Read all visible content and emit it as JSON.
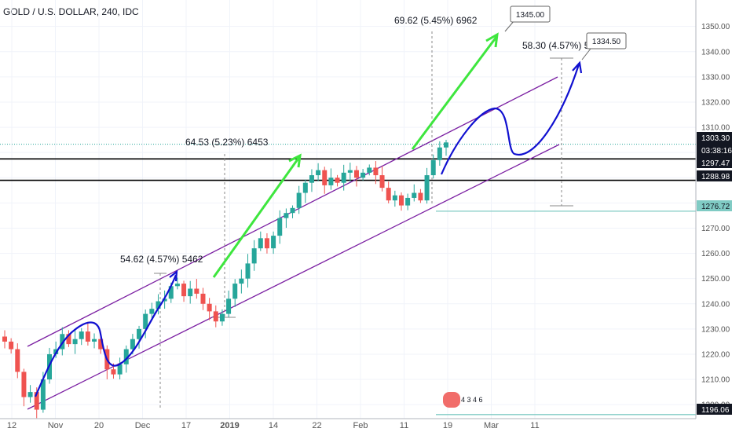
{
  "header": {
    "title": "GOLD / U.S. DOLLAR, 240, IDC"
  },
  "colors": {
    "up": "#26a69a",
    "down": "#ef5350",
    "channel": "#7b1fa2",
    "level": "#000000",
    "teal_line": "#80cbc4",
    "green_arrow": "#3ee63e",
    "blue_path": "#1010d0",
    "price_badge": "#131722",
    "grid": "#f0f3fa"
  },
  "chart_data": {
    "type": "candlestick",
    "symbol": "GOLD / U.S. DOLLAR",
    "timeframe": "240",
    "source": "IDC",
    "x_tick_labels": [
      "12",
      "Nov",
      "20",
      "Dec",
      "17",
      "2019",
      "14",
      "22",
      "Feb",
      "11",
      "19",
      "Mar",
      "11"
    ],
    "y_tick_labels": [
      "1200.00",
      "1210.00",
      "1220.00",
      "1230.00",
      "1240.00",
      "1250.00",
      "1260.00",
      "1270.00",
      "1280.00",
      "1290.00",
      "1300.00",
      "1310.00",
      "1320.00",
      "1330.00",
      "1340.00",
      "1350.00"
    ],
    "ylim": [
      1196,
      1358
    ],
    "price_labels": [
      {
        "key": "current",
        "value": "1303.30",
        "sub": "03:38:16"
      },
      {
        "key": "r1",
        "value": "1297.47"
      },
      {
        "key": "r2",
        "value": "1288.98"
      },
      {
        "key": "support",
        "value": "1276.72"
      },
      {
        "key": "bottom",
        "value": "1196.06"
      }
    ],
    "horizontal_levels": [
      1297.47,
      1288.98,
      1276.72,
      1196.06
    ],
    "annotations": [
      {
        "key": "m1",
        "text": "54.62 (4.57%) 5462"
      },
      {
        "key": "m2",
        "text": "64.53 (5.23%) 6453"
      },
      {
        "key": "m3",
        "text": "69.62 (5.45%) 6962"
      },
      {
        "key": "m4",
        "text": "58.30 (4.57%) 5830"
      }
    ],
    "callouts": [
      {
        "key": "t1",
        "text": "1345.00"
      },
      {
        "key": "t2",
        "text": "1334.50"
      }
    ],
    "events": "4 3 4 6",
    "series": [
      {
        "values": [
          1225,
          1222,
          1213,
          1203,
          1205,
          1198,
          1210,
          1220,
          1222,
          1228,
          1224,
          1226,
          1229,
          1225,
          1226,
          1222,
          1214,
          1212,
          1216,
          1222,
          1226,
          1230,
          1236,
          1238,
          1241,
          1242,
          1247,
          1248,
          1243,
          1246,
          1244,
          1240,
          1237,
          1233,
          1236,
          1242,
          1248,
          1250,
          1256,
          1262,
          1266,
          1262,
          1267,
          1274,
          1276,
          1278,
          1284,
          1288,
          1291,
          1293,
          1287,
          1290,
          1288,
          1292,
          1293,
          1290,
          1292,
          1294,
          1291,
          1286,
          1281,
          1283,
          1279,
          1282,
          1284,
          1281,
          1291,
          1297,
          1302,
          1304
        ]
      }
    ]
  }
}
